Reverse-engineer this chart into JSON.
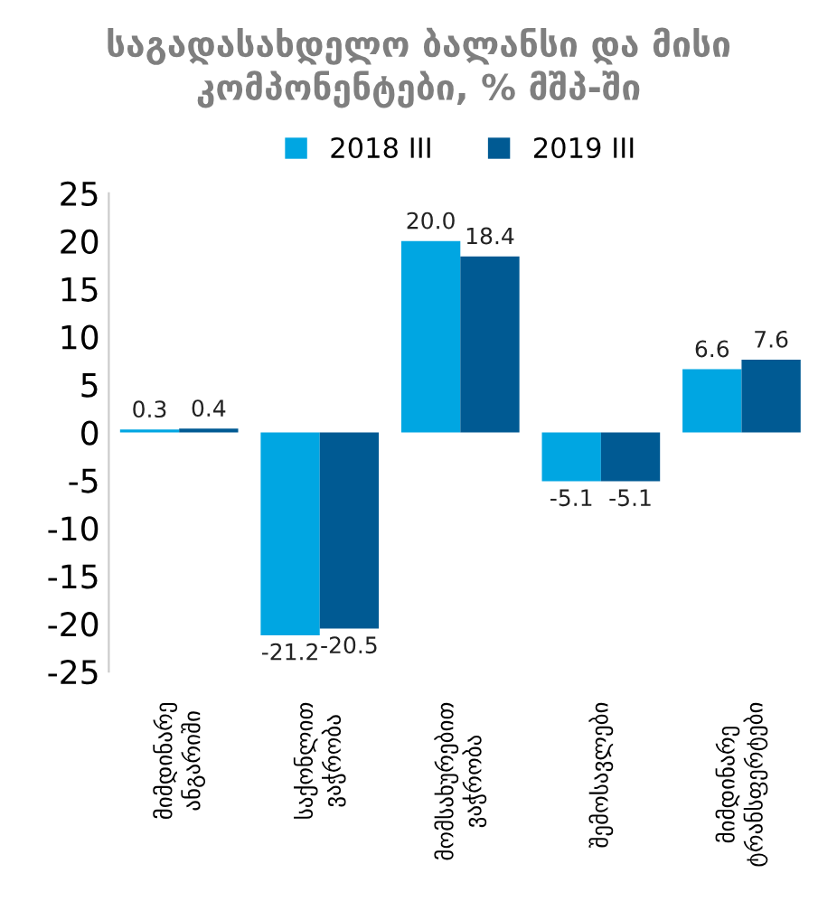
{
  "chart_data": {
    "type": "bar",
    "title": "საგადასახდელო ბალანსი და მისი კომპონენტები, % მშპ-ში",
    "categories": [
      "მიმდინარე ანგარიში",
      "საქონლით ვაჭრობა",
      "მომსახურებით ვაჭრობა",
      "შემოსავლები",
      "მიმდინარე ტრანსფერტები"
    ],
    "series": [
      {
        "name": "2018 III",
        "color": "#00a6e2",
        "values": [
          0.3,
          -21.2,
          20.0,
          -5.1,
          6.6
        ]
      },
      {
        "name": "2019 III",
        "color": "#005a93",
        "values": [
          0.4,
          -20.5,
          18.4,
          -5.1,
          7.6
        ]
      }
    ],
    "value_labels": [
      [
        "0.3",
        "-21.2",
        "20.0",
        "-5.1",
        "6.6"
      ],
      [
        "0.4",
        "-20.5",
        "18.4",
        "-5.1",
        "7.6"
      ]
    ],
    "ylim": [
      -25,
      25
    ],
    "yticks": [
      -25,
      -20,
      -15,
      -10,
      -5,
      0,
      5,
      10,
      15,
      20,
      25
    ],
    "grid": false,
    "legend": "top"
  }
}
